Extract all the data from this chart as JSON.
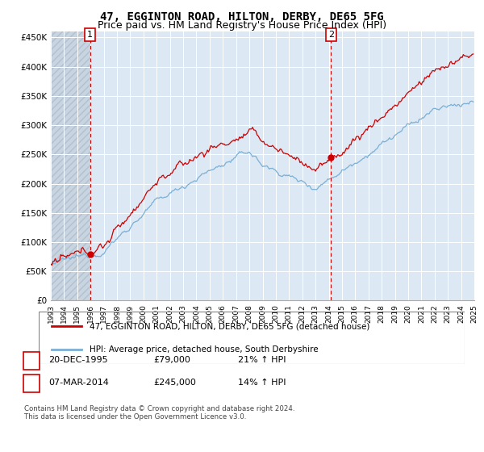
{
  "title1": "47, EGGINTON ROAD, HILTON, DERBY, DE65 5FG",
  "title2": "Price paid vs. HM Land Registry's House Price Index (HPI)",
  "legend_line1": "47, EGGINTON ROAD, HILTON, DERBY, DE65 5FG (detached house)",
  "legend_line2": "HPI: Average price, detached house, South Derbyshire",
  "ylabel_ticks": [
    "£0",
    "£50K",
    "£100K",
    "£150K",
    "£200K",
    "£250K",
    "£300K",
    "£350K",
    "£400K",
    "£450K"
  ],
  "ytick_vals": [
    0,
    50000,
    100000,
    150000,
    200000,
    250000,
    300000,
    350000,
    400000,
    450000
  ],
  "xstart_year": 1993,
  "xend_year": 2025,
  "sale1_year": 1995.97,
  "sale1_price": 79000,
  "sale1_date_str": "20-DEC-1995",
  "sale1_hpi_str": "21% ↑ HPI",
  "sale2_year": 2014.17,
  "sale2_price": 245000,
  "sale2_date_str": "07-MAR-2014",
  "sale2_hpi_str": "14% ↑ HPI",
  "hpi_color": "#7bafd4",
  "price_color": "#cc0000",
  "bg_color": "#dce9f5",
  "hatch_bg_color": "#c8d4e0",
  "grid_color": "#ffffff",
  "vline_color": "#cc0000",
  "footer_text": "Contains HM Land Registry data © Crown copyright and database right 2024.\nThis data is licensed under the Open Government Licence v3.0.",
  "title_fontsize": 10,
  "subtitle_fontsize": 9
}
